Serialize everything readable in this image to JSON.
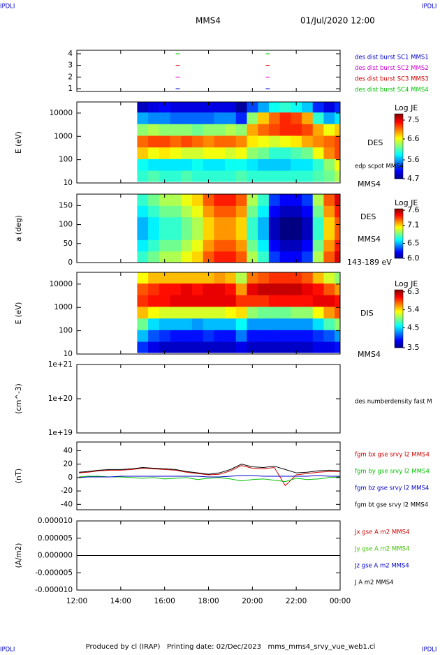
{
  "header": {
    "title": "MMS4",
    "date": "01/Jul/2020 12:00",
    "corners": [
      "IPDLI",
      "IPDLI",
      "IPDLI",
      "IPDLI"
    ]
  },
  "footer": "Produced by cl (IRAP)   Printing date: 02/Dec/2023   mms_mms4_srvy_vue_web1.cl",
  "time_axis": {
    "xlim": [
      12,
      24
    ],
    "xticks": [
      {
        "value": 12,
        "label": "12:00"
      },
      {
        "value": 14,
        "label": "14:00"
      },
      {
        "value": 16,
        "label": "16:00"
      },
      {
        "value": 18,
        "label": "18:00"
      },
      {
        "value": 20,
        "label": "20:00"
      },
      {
        "value": 22,
        "label": "22:00"
      },
      {
        "value": 24,
        "label": "00:00"
      }
    ]
  },
  "chart_data": [
    {
      "type": "status",
      "ylim": [
        0.76,
        4.3
      ],
      "yticks": [
        1,
        2,
        3,
        4
      ],
      "log": false,
      "series": [
        {
          "name": "des dist burst SC1 MMS1",
          "color": "#0000c8",
          "x": [
            16.6,
            20.7
          ],
          "values": [
            1,
            1
          ]
        },
        {
          "name": "des dist burst SC2 MMS2",
          "color": "#d000d0",
          "x": [
            16.6,
            20.7
          ],
          "values": [
            2,
            2
          ]
        },
        {
          "name": "des dist burst SC3 MMS3",
          "color": "#d00000",
          "x": [
            16.6,
            20.7
          ],
          "values": [
            3,
            3
          ]
        },
        {
          "name": "des dist burst SC4 MMS4",
          "color": "#00c000",
          "x": [
            16.6,
            20.7
          ],
          "values": [
            4,
            4
          ]
        }
      ]
    },
    {
      "type": "heatmap",
      "ylabel": "E (eV)",
      "ylim": [
        10,
        30000
      ],
      "yticks": [
        10,
        100,
        1000,
        10000
      ],
      "log": true,
      "annotations": [
        "DES",
        "edp scpot MMS4",
        "MMS4"
      ],
      "colorbar_label": "Log JE",
      "zlim": [
        4.7,
        7.8
      ],
      "zticks": [
        7.5,
        6.6,
        5.6,
        4.7
      ],
      "x": [
        15,
        15.5,
        16,
        16.5,
        17,
        17.5,
        18,
        18.5,
        19,
        19.5,
        20,
        20.5,
        21,
        21.5,
        22,
        22.5,
        23,
        23.5,
        24
      ],
      "y": [
        20,
        60,
        200,
        600,
        2000,
        6000,
        20000
      ],
      "values": [
        [
          6.0,
          6.1,
          6.0,
          6.0,
          6.1,
          6.0,
          6.0,
          6.0,
          6.0,
          6.1,
          6.0,
          6.0,
          6.0,
          6.0,
          6.0,
          6.0,
          6.1,
          6.2,
          6.4
        ],
        [
          5.9,
          5.8,
          5.8,
          5.8,
          5.8,
          5.9,
          5.8,
          5.8,
          5.9,
          5.9,
          5.8,
          5.7,
          5.7,
          5.7,
          5.8,
          5.8,
          6.0,
          6.3,
          6.6
        ],
        [
          6.8,
          6.6,
          6.7,
          6.6,
          6.5,
          6.5,
          6.6,
          6.6,
          6.5,
          6.6,
          6.3,
          6.2,
          6.0,
          6.0,
          6.1,
          6.2,
          6.6,
          7.0,
          7.2
        ],
        [
          7.1,
          7.2,
          7.2,
          7.1,
          7.2,
          7.1,
          7.0,
          7.1,
          7.1,
          7.0,
          6.7,
          6.6,
          6.5,
          6.6,
          6.7,
          6.9,
          7.0,
          7.1,
          7.2
        ],
        [
          6.3,
          6.4,
          6.3,
          6.3,
          6.3,
          6.2,
          6.3,
          6.3,
          6.4,
          6.3,
          6.9,
          7.1,
          7.2,
          7.3,
          7.3,
          7.2,
          6.9,
          6.6,
          6.8
        ],
        [
          5.6,
          5.5,
          5.5,
          5.4,
          5.4,
          5.4,
          5.4,
          5.5,
          5.5,
          5.2,
          6.3,
          6.8,
          7.1,
          7.3,
          7.2,
          6.9,
          6.0,
          5.6,
          5.8
        ],
        [
          4.9,
          5.0,
          5.1,
          5.0,
          5.0,
          5.0,
          5.0,
          5.0,
          5.0,
          4.8,
          5.3,
          5.6,
          5.9,
          6.0,
          5.9,
          5.7,
          5.2,
          5.0,
          5.2
        ]
      ]
    },
    {
      "type": "heatmap",
      "ylabel": "a (deg)",
      "ylim": [
        0,
        180
      ],
      "yticks": [
        0,
        50,
        100,
        150
      ],
      "log": false,
      "annotations": [
        "DES",
        "MMS4",
        "143-189 eV"
      ],
      "colorbar_label": "Log JE",
      "zlim": [
        6.0,
        7.65
      ],
      "zticks": [
        7.6,
        7.1,
        6.5,
        {
          "value": 6,
          "label": "6.0"
        }
      ],
      "x": [
        15,
        15.5,
        16,
        16.5,
        17,
        17.5,
        18,
        18.5,
        19,
        19.5,
        20,
        20.5,
        21,
        21.5,
        22,
        22.5,
        23,
        23.5,
        24
      ],
      "y": [
        15,
        45,
        75,
        105,
        135,
        165
      ],
      "values": [
        [
          6.7,
          6.8,
          6.9,
          6.9,
          7.0,
          7.1,
          7.3,
          7.4,
          7.4,
          7.3,
          6.9,
          6.7,
          6.3,
          6.2,
          6.2,
          6.3,
          6.9,
          7.3,
          7.5
        ],
        [
          6.6,
          6.7,
          6.8,
          6.8,
          6.9,
          7.0,
          7.2,
          7.3,
          7.3,
          7.2,
          6.8,
          6.6,
          6.2,
          6.1,
          6.1,
          6.2,
          6.8,
          7.2,
          7.4
        ],
        [
          6.5,
          6.6,
          6.7,
          6.7,
          6.8,
          6.9,
          7.1,
          7.2,
          7.2,
          7.1,
          6.7,
          6.5,
          6.1,
          6.0,
          6.0,
          6.1,
          6.7,
          7.1,
          7.3
        ],
        [
          6.5,
          6.6,
          6.7,
          6.7,
          6.8,
          6.9,
          7.1,
          7.2,
          7.2,
          7.1,
          6.7,
          6.5,
          6.1,
          6.0,
          6.0,
          6.1,
          6.7,
          7.1,
          7.3
        ],
        [
          6.6,
          6.7,
          6.8,
          6.8,
          6.9,
          7.0,
          7.2,
          7.3,
          7.3,
          7.2,
          6.8,
          6.6,
          6.2,
          6.1,
          6.1,
          6.2,
          6.8,
          7.2,
          7.4
        ],
        [
          6.7,
          6.8,
          6.9,
          6.9,
          7.0,
          7.1,
          7.3,
          7.4,
          7.4,
          7.3,
          6.9,
          6.7,
          6.3,
          6.2,
          6.2,
          6.3,
          6.9,
          7.3,
          7.5
        ]
      ]
    },
    {
      "type": "heatmap",
      "ylabel": "E (eV)",
      "ylim": [
        10,
        32000
      ],
      "yticks": [
        10,
        100,
        1000,
        10000
      ],
      "log": true,
      "annotations": [
        "DIS",
        "MMS4"
      ],
      "colorbar_label": "Log JE",
      "zlim": [
        3.5,
        6.4
      ],
      "zticks": [
        6.3,
        5.4,
        4.5,
        3.5
      ],
      "x": [
        15,
        15.5,
        16,
        16.5,
        17,
        17.5,
        18,
        18.5,
        19,
        19.5,
        20,
        20.5,
        21,
        21.5,
        22,
        22.5,
        23,
        23.5,
        24
      ],
      "y": [
        20,
        60,
        200,
        600,
        2000,
        6000,
        20000
      ],
      "values": [
        [
          4.0,
          3.8,
          3.7,
          3.7,
          3.7,
          3.7,
          3.7,
          3.7,
          3.7,
          3.8,
          3.7,
          3.7,
          3.7,
          3.7,
          3.7,
          3.7,
          3.8,
          3.8,
          3.9
        ],
        [
          4.4,
          4.1,
          4.0,
          3.9,
          3.9,
          3.9,
          4.0,
          3.9,
          3.9,
          4.2,
          3.9,
          3.9,
          3.9,
          3.9,
          3.9,
          3.9,
          4.0,
          4.1,
          4.3
        ],
        [
          4.9,
          4.5,
          4.4,
          4.4,
          4.4,
          4.3,
          4.4,
          4.4,
          4.4,
          4.6,
          4.3,
          4.3,
          4.3,
          4.3,
          4.3,
          4.3,
          4.5,
          4.8,
          5.0
        ],
        [
          5.5,
          5.3,
          5.2,
          5.2,
          5.2,
          5.2,
          5.2,
          5.2,
          5.3,
          5.4,
          5.0,
          4.9,
          4.9,
          4.9,
          5.0,
          5.0,
          5.3,
          5.6,
          5.8
        ],
        [
          5.9,
          6.0,
          6.0,
          6.1,
          6.1,
          6.1,
          6.1,
          6.1,
          6.1,
          5.9,
          5.9,
          5.9,
          6.0,
          6.0,
          6.0,
          6.0,
          6.1,
          6.1,
          6.0
        ],
        [
          5.8,
          5.9,
          6.0,
          6.0,
          6.1,
          6.0,
          6.1,
          6.1,
          6.0,
          5.6,
          6.1,
          6.2,
          6.2,
          6.2,
          6.2,
          6.1,
          6.0,
          5.8,
          5.6
        ],
        [
          5.3,
          5.5,
          5.5,
          5.5,
          5.5,
          5.5,
          5.5,
          5.6,
          5.5,
          5.1,
          5.7,
          5.8,
          5.9,
          5.9,
          5.9,
          5.8,
          5.5,
          5.2,
          5.0
        ]
      ]
    },
    {
      "type": "line",
      "ylabel": "(cm^-3)",
      "ylim": [
        1e+19,
        1e+21
      ],
      "log": true,
      "yticks": [
        {
          "value": 1e+19,
          "label": "1e+19"
        },
        {
          "value": 1e+20,
          "label": "1e+20"
        },
        {
          "value": 1e+21,
          "label": "1e+21"
        }
      ],
      "annotations": [
        "des numberdensity fast M"
      ]
    },
    {
      "type": "line",
      "ylabel": "(nT)",
      "ylim": [
        -48,
        53
      ],
      "yticks": [
        -40,
        -20,
        0,
        20,
        40
      ],
      "log": false,
      "x": [
        12.1,
        12.5,
        13,
        13.5,
        14,
        14.5,
        15,
        15.5,
        16,
        16.5,
        17,
        17.5,
        18,
        18.5,
        19,
        19.5,
        20,
        20.5,
        21,
        21.5,
        22,
        22.5,
        23,
        23.5,
        24
      ],
      "series": [
        {
          "name": "fgm bx gse srvy l2 MMS4",
          "color": "#d00000",
          "values": [
            7,
            8,
            10,
            11,
            11,
            12,
            14,
            13,
            12,
            11,
            8,
            6,
            4,
            5,
            10,
            18,
            14,
            13,
            15,
            -12,
            4,
            6,
            8,
            9,
            9
          ]
        },
        {
          "name": "fgm by gse srvy l2 MMS4",
          "color": "#00c000",
          "values": [
            1,
            2,
            2,
            1,
            1,
            0,
            -1,
            0,
            -2,
            -1,
            0,
            -3,
            -1,
            0,
            -2,
            -5,
            -3,
            -2,
            -4,
            -6,
            -1,
            -3,
            -2,
            0,
            1
          ]
        },
        {
          "name": "fgm bz gse srvy l2 MMS4",
          "color": "#0000c8",
          "values": [
            0,
            1,
            1,
            1,
            2,
            2,
            2,
            2,
            2,
            2,
            2,
            2,
            1,
            1,
            2,
            3,
            3,
            2,
            2,
            2,
            2,
            2,
            3,
            2,
            2
          ]
        },
        {
          "name": "fgm bt gse srvy l2 MMS4",
          "color": "#000000",
          "values": [
            8,
            9,
            11,
            12,
            12,
            13,
            15,
            14,
            13,
            12,
            9,
            7,
            5,
            7,
            12,
            20,
            16,
            15,
            17,
            12,
            7,
            8,
            10,
            11,
            10
          ]
        }
      ]
    },
    {
      "type": "line",
      "ylabel": "(A/m2)",
      "ylim": [
        -1e-05,
        1e-05
      ],
      "log": false,
      "yticks": [
        {
          "value": 1e-05,
          "label": "0.000010"
        },
        {
          "value": 5e-06,
          "label": "0.000005"
        },
        {
          "value": 0,
          "label": "0.000000"
        },
        {
          "value": -5e-06,
          "label": "-0.000005"
        },
        {
          "value": -1e-05,
          "label": "-0.000010"
        }
      ],
      "x": [
        12.1,
        24
      ],
      "series": [
        {
          "name": "Jx gse A m2 MMS4",
          "color": "#d00000",
          "values": [
            0,
            0
          ]
        },
        {
          "name": "Jy gse A m2 MMS4",
          "color": "#40c000",
          "values": [
            0,
            0
          ]
        },
        {
          "name": "Jz gse A m2 MMS4",
          "color": "#0000c8",
          "values": [
            0,
            0
          ]
        },
        {
          "name": "J A m2 MMS4",
          "color": "#000000",
          "values": [
            0,
            0
          ]
        }
      ]
    }
  ]
}
